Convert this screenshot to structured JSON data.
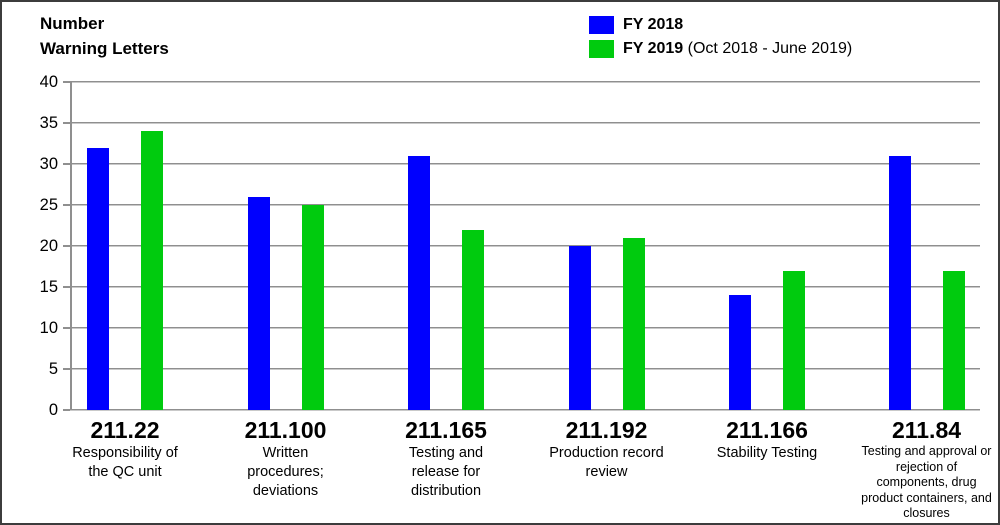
{
  "title": {
    "line1": "Number",
    "line2": "Warning Letters"
  },
  "legend": {
    "items": [
      {
        "label": "FY 2018",
        "note": "",
        "color": "#0000fe"
      },
      {
        "label": "FY 2019",
        "note": " (Oct 2018 - June 2019)",
        "color": "#00cb0e"
      }
    ]
  },
  "chart_data": {
    "type": "bar",
    "title": "Number Warning Letters",
    "ylabel": "Number Warning Letters",
    "ylim": [
      0,
      40
    ],
    "yticks": [
      0,
      5,
      10,
      15,
      20,
      25,
      30,
      35,
      40
    ],
    "grid": true,
    "legend_position": "top-center",
    "categories": [
      {
        "code": "211.22",
        "label": "Responsibility of the QC unit"
      },
      {
        "code": "211.100",
        "label": "Written procedures; deviations"
      },
      {
        "code": "211.165",
        "label": "Testing and release for distribution"
      },
      {
        "code": "211.192",
        "label": "Production record review"
      },
      {
        "code": "211.166",
        "label": "Stability Testing"
      },
      {
        "code": "211.84",
        "label": "Testing and approval or rejection of components, drug product containers, and closures"
      }
    ],
    "series": [
      {
        "name": "FY 2018",
        "color": "#0000fe",
        "values": [
          32,
          26,
          31,
          20,
          14,
          31
        ]
      },
      {
        "name": "FY 2019 (Oct 2018 - June 2019)",
        "color": "#00cb0e",
        "values": [
          34,
          25,
          22,
          21,
          17,
          17
        ]
      }
    ]
  }
}
